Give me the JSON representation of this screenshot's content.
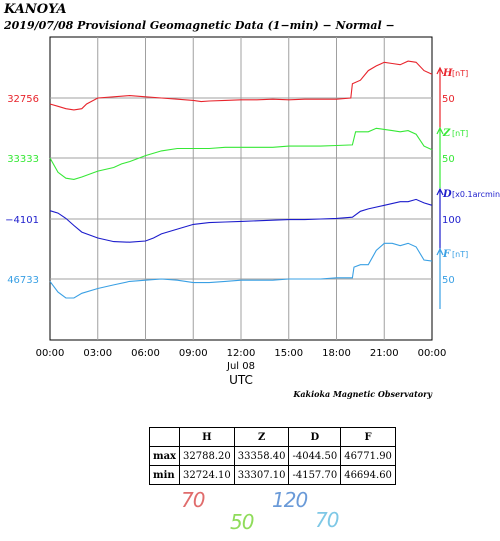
{
  "header": {
    "station": "KANOYA",
    "subtitle": "2019/07/08  Provisional Geomagnetic Data (1−min)  − Normal −"
  },
  "chart_data": {
    "type": "line",
    "x_ticks": [
      "00:00",
      "03:00",
      "06:00",
      "09:00",
      "12:00",
      "15:00",
      "18:00",
      "21:00",
      "00:00"
    ],
    "x_date_label": "Jul 08",
    "xlabel": "UTC",
    "xlim": [
      0,
      24
    ],
    "credit": "Kakioka Magnetic Observatory",
    "series": [
      {
        "name": "H",
        "unit": "[nT]",
        "color": "#e8242c",
        "left_label": "32756",
        "left_value": 32756,
        "scale": 50,
        "scale_label": "50",
        "points": [
          [
            0,
            32751
          ],
          [
            0.5,
            32749
          ],
          [
            1,
            32747
          ],
          [
            1.5,
            32746
          ],
          [
            2,
            32747
          ],
          [
            2.3,
            32751
          ],
          [
            3,
            32756
          ],
          [
            4,
            32757
          ],
          [
            5,
            32758
          ],
          [
            6,
            32757
          ],
          [
            7,
            32756
          ],
          [
            8,
            32755
          ],
          [
            9,
            32754
          ],
          [
            9.5,
            32753
          ],
          [
            10,
            32753.5
          ],
          [
            11,
            32754
          ],
          [
            12,
            32754.5
          ],
          [
            13,
            32754.5
          ],
          [
            14,
            32755
          ],
          [
            15,
            32754.5
          ],
          [
            16,
            32755
          ],
          [
            17,
            32755
          ],
          [
            18,
            32755
          ],
          [
            18.9,
            32756
          ],
          [
            19,
            32768
          ],
          [
            19.5,
            32771
          ],
          [
            20,
            32779
          ],
          [
            20.5,
            32783
          ],
          [
            21,
            32786
          ],
          [
            21.5,
            32785
          ],
          [
            22,
            32784
          ],
          [
            22.5,
            32787
          ],
          [
            23,
            32786
          ],
          [
            23.5,
            32779
          ],
          [
            24,
            32776
          ]
        ]
      },
      {
        "name": "Z",
        "unit": "[nT]",
        "color": "#36e836",
        "left_label": "33333",
        "left_value": 33333,
        "scale": 50,
        "scale_label": "50",
        "points": [
          [
            0,
            33333
          ],
          [
            0.5,
            33321
          ],
          [
            1,
            33316
          ],
          [
            1.5,
            33315
          ],
          [
            2,
            33317
          ],
          [
            3,
            33322
          ],
          [
            4,
            33325
          ],
          [
            4.5,
            33328
          ],
          [
            5,
            33330
          ],
          [
            6,
            33335
          ],
          [
            7,
            33339
          ],
          [
            8,
            33341
          ],
          [
            9,
            33341
          ],
          [
            10,
            33341
          ],
          [
            11,
            33342
          ],
          [
            12,
            33342
          ],
          [
            13,
            33342
          ],
          [
            14,
            33342
          ],
          [
            15,
            33343
          ],
          [
            16,
            33343
          ],
          [
            17,
            33343
          ],
          [
            18,
            33343.5
          ],
          [
            19,
            33344
          ],
          [
            19.2,
            33355
          ],
          [
            20,
            33355
          ],
          [
            20.5,
            33358
          ],
          [
            21,
            33357
          ],
          [
            21.5,
            33356
          ],
          [
            22,
            33355
          ],
          [
            22.5,
            33356
          ],
          [
            23,
            33353
          ],
          [
            23.5,
            33343
          ],
          [
            24,
            33340
          ]
        ]
      },
      {
        "name": "D",
        "unit": "[x0.1arcmin]",
        "color": "#1c1ccc",
        "left_label": "−4101",
        "left_value": -4101,
        "scale": 100,
        "scale_label": "100",
        "points": [
          [
            0,
            -4087
          ],
          [
            0.5,
            -4091
          ],
          [
            1,
            -4100
          ],
          [
            1.5,
            -4112
          ],
          [
            2,
            -4123
          ],
          [
            3,
            -4133
          ],
          [
            4,
            -4139
          ],
          [
            5,
            -4140
          ],
          [
            6,
            -4138
          ],
          [
            6.5,
            -4133
          ],
          [
            7,
            -4126
          ],
          [
            8,
            -4118
          ],
          [
            9,
            -4110
          ],
          [
            10,
            -4107
          ],
          [
            11,
            -4106
          ],
          [
            12,
            -4105
          ],
          [
            13,
            -4104
          ],
          [
            14,
            -4103
          ],
          [
            15,
            -4102
          ],
          [
            16,
            -4102
          ],
          [
            17,
            -4101
          ],
          [
            18,
            -4100
          ],
          [
            19,
            -4098
          ],
          [
            19.5,
            -4088
          ],
          [
            20,
            -4084
          ],
          [
            21,
            -4078
          ],
          [
            22,
            -4072
          ],
          [
            22.5,
            -4072
          ],
          [
            23,
            -4068
          ],
          [
            23.5,
            -4074
          ],
          [
            24,
            -4078
          ]
        ]
      },
      {
        "name": "F",
        "unit": "[nT]",
        "color": "#3aa0e4",
        "left_label": "46733",
        "left_value": 46733,
        "scale": 50,
        "scale_label": "50",
        "points": [
          [
            0,
            46731
          ],
          [
            0.5,
            46722
          ],
          [
            1,
            46717
          ],
          [
            1.5,
            46717
          ],
          [
            2,
            46721
          ],
          [
            3,
            46725
          ],
          [
            4,
            46728
          ],
          [
            5,
            46731
          ],
          [
            6,
            46732
          ],
          [
            7,
            46733
          ],
          [
            8,
            46732
          ],
          [
            9,
            46730
          ],
          [
            10,
            46730
          ],
          [
            11,
            46731
          ],
          [
            12,
            46732
          ],
          [
            13,
            46732
          ],
          [
            14,
            46732
          ],
          [
            15,
            46733
          ],
          [
            16,
            46733
          ],
          [
            17,
            46733
          ],
          [
            18,
            46734
          ],
          [
            19,
            46734
          ],
          [
            19.1,
            46743
          ],
          [
            19.5,
            46745
          ],
          [
            20,
            46745
          ],
          [
            20.5,
            46757
          ],
          [
            21,
            46763
          ],
          [
            21.5,
            46763
          ],
          [
            22,
            46761
          ],
          [
            22.5,
            46763
          ],
          [
            23,
            46760
          ],
          [
            23.5,
            46749
          ],
          [
            24,
            46748
          ]
        ]
      }
    ]
  },
  "stats_table": {
    "headers": [
      "",
      "H",
      "Z",
      "D",
      "F"
    ],
    "rows": [
      {
        "label": "max",
        "values": [
          "32788.20",
          "33358.40",
          "-4044.50",
          "46771.90"
        ]
      },
      {
        "label": "min",
        "values": [
          "32724.10",
          "33307.10",
          "-4157.70",
          "46694.60"
        ]
      }
    ]
  },
  "handwritten": [
    {
      "text": "70",
      "color": "#e06c6c"
    },
    {
      "text": "50",
      "color": "#8fdc5a"
    },
    {
      "text": "120",
      "color": "#6a9ad8"
    },
    {
      "text": "70",
      "color": "#7ec8e6"
    }
  ]
}
